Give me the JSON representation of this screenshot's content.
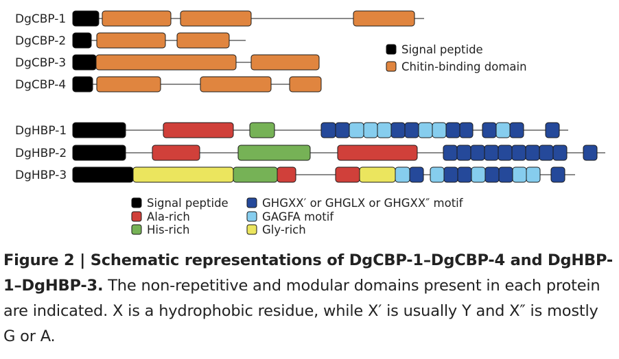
{
  "colors": {
    "signal_peptide": "#000000",
    "chitin_binding": "#E0853F",
    "ala_rich": "#D0403A",
    "his_rich": "#76B256",
    "ghgxx_motif": "#25499A",
    "gagfa_motif": "#86CDEE",
    "gly_rich": "#EBE55E",
    "line": "#444444"
  },
  "dgcbp": {
    "proteins": [
      {
        "name": "DgCBP-1",
        "domains": [
          {
            "type": "signal_peptide",
            "start": 106,
            "end": 144
          },
          {
            "type": "chitin_binding",
            "start": 149,
            "end": 249
          },
          {
            "type": "chitin_binding",
            "start": 263,
            "end": 366
          },
          {
            "type": "chitin_binding",
            "start": 515,
            "end": 604
          }
        ],
        "line_end": 618
      },
      {
        "name": "DgCBP-2",
        "domains": [
          {
            "type": "signal_peptide",
            "start": 106,
            "end": 133
          },
          {
            "type": "chitin_binding",
            "start": 141,
            "end": 241
          },
          {
            "type": "chitin_binding",
            "start": 258,
            "end": 334
          }
        ],
        "line_end": 358
      },
      {
        "name": "DgCBP-3",
        "domains": [
          {
            "type": "signal_peptide",
            "start": 106,
            "end": 140
          },
          {
            "type": "chitin_binding",
            "start": 140,
            "end": 344
          },
          {
            "type": "chitin_binding",
            "start": 366,
            "end": 465
          }
        ],
        "line_end": 465
      },
      {
        "name": "DgCBP-4",
        "domains": [
          {
            "type": "signal_peptide",
            "start": 106,
            "end": 135
          },
          {
            "type": "chitin_binding",
            "start": 141,
            "end": 234
          },
          {
            "type": "chitin_binding",
            "start": 292,
            "end": 395
          },
          {
            "type": "chitin_binding",
            "start": 422,
            "end": 468
          }
        ],
        "line_end": 468
      }
    ],
    "legend": [
      {
        "type": "signal_peptide",
        "label": "Signal peptide"
      },
      {
        "type": "chitin_binding",
        "label": "Chitin-binding domain"
      }
    ]
  },
  "dghbp": {
    "proteins": [
      {
        "name": "DgHBP-1",
        "domains": [
          {
            "type": "signal_peptide",
            "start": 106,
            "end": 183
          },
          {
            "type": "ala_rich",
            "start": 238,
            "end": 340
          },
          {
            "type": "his_rich",
            "start": 364,
            "end": 400
          },
          {
            "type": "ghgxx_motif",
            "start": 468,
            "end": 489
          },
          {
            "type": "ghgxx_motif",
            "start": 489,
            "end": 509
          },
          {
            "type": "gagfa_motif",
            "start": 509,
            "end": 530
          },
          {
            "type": "gagfa_motif",
            "start": 530,
            "end": 550
          },
          {
            "type": "gagfa_motif",
            "start": 550,
            "end": 570
          },
          {
            "type": "ghgxx_motif",
            "start": 570,
            "end": 590
          },
          {
            "type": "ghgxx_motif",
            "start": 590,
            "end": 610
          },
          {
            "type": "gagfa_motif",
            "start": 610,
            "end": 630
          },
          {
            "type": "gagfa_motif",
            "start": 630,
            "end": 650
          },
          {
            "type": "ghgxx_motif",
            "start": 650,
            "end": 670
          },
          {
            "type": "ghgxx_motif",
            "start": 670,
            "end": 689
          },
          {
            "type": "ghgxx_motif",
            "start": 703,
            "end": 723
          },
          {
            "type": "gagfa_motif",
            "start": 723,
            "end": 743
          },
          {
            "type": "ghgxx_motif",
            "start": 743,
            "end": 763
          },
          {
            "type": "ghgxx_motif",
            "start": 795,
            "end": 815
          }
        ],
        "line_end": 828
      },
      {
        "name": "DgHBP-2",
        "domains": [
          {
            "type": "signal_peptide",
            "start": 106,
            "end": 183
          },
          {
            "type": "ala_rich",
            "start": 222,
            "end": 291
          },
          {
            "type": "his_rich",
            "start": 347,
            "end": 452
          },
          {
            "type": "ala_rich",
            "start": 492,
            "end": 608
          },
          {
            "type": "ghgxx_motif",
            "start": 646,
            "end": 666
          },
          {
            "type": "ghgxx_motif",
            "start": 666,
            "end": 686
          },
          {
            "type": "ghgxx_motif",
            "start": 686,
            "end": 706
          },
          {
            "type": "ghgxx_motif",
            "start": 706,
            "end": 726
          },
          {
            "type": "ghgxx_motif",
            "start": 726,
            "end": 746
          },
          {
            "type": "ghgxx_motif",
            "start": 746,
            "end": 766
          },
          {
            "type": "ghgxx_motif",
            "start": 766,
            "end": 786
          },
          {
            "type": "ghgxx_motif",
            "start": 786,
            "end": 806
          },
          {
            "type": "ghgxx_motif",
            "start": 806,
            "end": 826
          },
          {
            "type": "ghgxx_motif",
            "start": 850,
            "end": 870
          }
        ],
        "line_end": 882
      },
      {
        "name": "DgHBP-3",
        "domains": [
          {
            "type": "signal_peptide",
            "start": 106,
            "end": 194
          },
          {
            "type": "gly_rich",
            "start": 194,
            "end": 340
          },
          {
            "type": "his_rich",
            "start": 340,
            "end": 404
          },
          {
            "type": "ala_rich",
            "start": 404,
            "end": 431
          },
          {
            "type": "ala_rich",
            "start": 489,
            "end": 524
          },
          {
            "type": "gly_rich",
            "start": 524,
            "end": 576
          },
          {
            "type": "gagfa_motif",
            "start": 576,
            "end": 597
          },
          {
            "type": "ghgxx_motif",
            "start": 597,
            "end": 617
          },
          {
            "type": "gagfa_motif",
            "start": 627,
            "end": 647
          },
          {
            "type": "ghgxx_motif",
            "start": 647,
            "end": 667
          },
          {
            "type": "ghgxx_motif",
            "start": 667,
            "end": 687
          },
          {
            "type": "gagfa_motif",
            "start": 687,
            "end": 707
          },
          {
            "type": "ghgxx_motif",
            "start": 707,
            "end": 727
          },
          {
            "type": "ghgxx_motif",
            "start": 727,
            "end": 747
          },
          {
            "type": "gagfa_motif",
            "start": 747,
            "end": 767
          },
          {
            "type": "gagfa_motif",
            "start": 767,
            "end": 787
          },
          {
            "type": "ghgxx_motif",
            "start": 803,
            "end": 823
          }
        ],
        "line_end": 838
      }
    ],
    "legend": [
      {
        "type": "signal_peptide",
        "label": "Signal peptide"
      },
      {
        "type": "ala_rich",
        "label": "Ala-rich"
      },
      {
        "type": "his_rich",
        "label": "His-rich"
      },
      {
        "type": "ghgxx_motif",
        "label": "GHGXX′ or GHGLX or GHGXX″ motif"
      },
      {
        "type": "gagfa_motif",
        "label": "GAGFA motif"
      },
      {
        "type": "gly_rich",
        "label": "Gly-rich"
      }
    ]
  },
  "caption": {
    "bold": "Figure 2 | Schematic representations of DgCBP-1–DgCBP-4 and DgHBP-1–DgHBP-3.",
    "body": " The non-repetitive and modular domains present in each protein are indicated. X is a hydrophobic residue, while X′ is usually Y and X″ is mostly G or A."
  }
}
